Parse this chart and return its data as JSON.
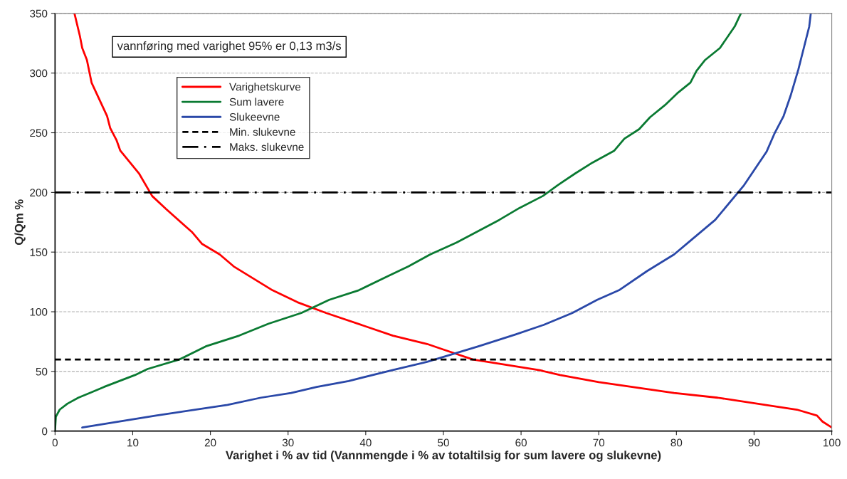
{
  "chart_data": {
    "type": "line",
    "xlabel": "Varighet i % av tid (Vannmengde i % av totaltilsig for sum lavere og slukevne)",
    "ylabel": "Q/Qm %",
    "annotations": [
      "vannføring med varighet 95% er 0,13 m3/s"
    ],
    "xlim": [
      0,
      100
    ],
    "xticks": [
      0,
      10,
      20,
      30,
      40,
      50,
      60,
      70,
      80,
      90,
      100
    ],
    "ylim": [
      0,
      350
    ],
    "yticks": [
      0,
      50,
      100,
      150,
      200,
      250,
      300,
      350
    ],
    "grid": "y",
    "legend": "top left",
    "line_style": "solid",
    "marker": "none",
    "series": [
      {
        "name": "Varighetskurve",
        "color": "#ff0000",
        "x": [
          2.5,
          3.2,
          3.5,
          4.1,
          4.7,
          6.7,
          7.1,
          7.9,
          8.4,
          10.8,
          12.5,
          14.3,
          17.6,
          18.9,
          21.2,
          23.0,
          28.0,
          31.2,
          34.9,
          43.5,
          47.9,
          49.7,
          53.8,
          62.4,
          65.0,
          70.0,
          79.7,
          85.3,
          95.5,
          98.1,
          98.8,
          100
        ],
        "values": [
          350,
          331,
          321,
          311,
          292,
          264,
          254,
          244,
          235,
          216,
          197,
          186,
          167,
          157,
          148,
          138,
          118,
          108,
          99,
          80,
          73,
          69,
          60,
          51,
          47,
          41,
          32,
          28,
          18,
          13,
          8,
          3
        ]
      },
      {
        "name": "Sum lavere",
        "color": "#0a7a32",
        "x": [
          0,
          0.1,
          0.6,
          1.6,
          3.0,
          4.5,
          6.3,
          10.3,
          11.9,
          16.0,
          19.4,
          23.7,
          27.5,
          31.7,
          35.3,
          39.1,
          42.9,
          45.5,
          48.3,
          51.7,
          54.3,
          57.2,
          59.8,
          62.8,
          64.7,
          67.0,
          69.2,
          72.0,
          73.3,
          75.2,
          76.6,
          78.5,
          80.1,
          81.8,
          82.6,
          83.7,
          85.6,
          87.5,
          88.3
        ],
        "values": [
          1,
          12,
          18,
          23,
          28,
          32,
          37,
          47,
          52,
          60,
          71,
          80,
          90,
          99,
          110,
          118,
          130,
          138,
          148,
          158,
          167,
          177,
          187,
          197,
          206,
          216,
          225,
          235,
          245,
          253,
          263,
          273,
          283,
          292,
          302,
          311,
          321,
          339,
          350
        ]
      },
      {
        "name": "Slukeevne",
        "color": "#2a48a8",
        "x": [
          3.5,
          13.0,
          22.2,
          26.5,
          30.4,
          33.7,
          37.8,
          43.4,
          47.9,
          54.5,
          59.3,
          62.9,
          66.6,
          69.8,
          72.6,
          76.2,
          79.7,
          81.7,
          85.0,
          88.7,
          91.6,
          92.6,
          93.8,
          94.7,
          95.7,
          96.4,
          97.1,
          97.3
        ],
        "values": [
          3,
          13,
          22,
          28,
          32,
          37,
          42,
          51,
          58,
          71,
          81,
          89,
          99,
          110,
          118,
          134,
          148,
          159,
          177,
          206,
          234,
          249,
          264,
          281,
          303,
          321,
          339,
          350
        ]
      }
    ],
    "ref_lines": [
      {
        "axis": "y",
        "value": 60,
        "label": "Min. slukevne",
        "color": "#000000",
        "line_style": "dashed"
      },
      {
        "axis": "y",
        "value": 200,
        "label": "Maks. slukevne",
        "color": "#000000",
        "line_style": "dashdot"
      }
    ]
  }
}
